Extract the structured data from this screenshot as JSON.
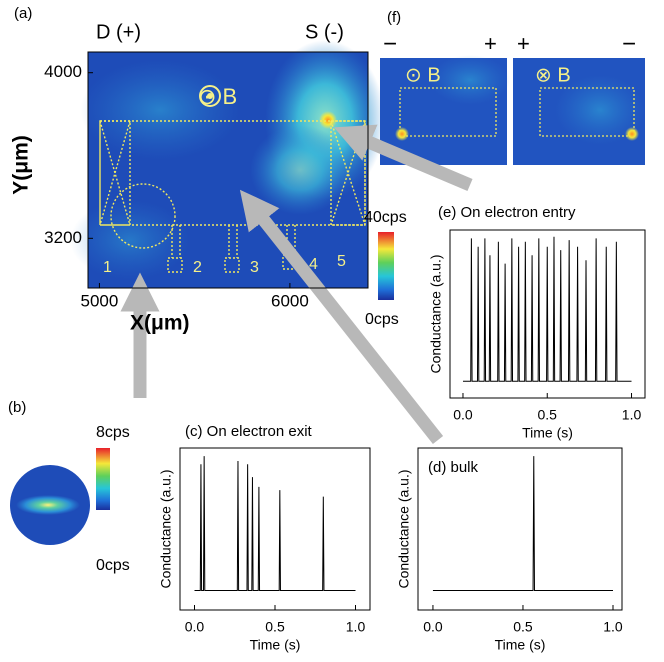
{
  "chart_data": [
    {
      "type": "heatmap",
      "panel_label": "(a)",
      "annotations": [
        "D (+)",
        "S (-)",
        "⊙ B",
        "1",
        "2",
        "3",
        "4",
        "5"
      ],
      "xlabel": "X(μm)",
      "ylabel": "Y(μm)",
      "xlim": [
        4940,
        6410
      ],
      "ylim": [
        2960,
        4100
      ],
      "xticks": [
        5000,
        6000
      ],
      "yticks": [
        3200,
        4000
      ],
      "colorbar_labels": [
        "40cps",
        "0cps"
      ]
    },
    {
      "type": "heatmap",
      "panel_label": "(b)",
      "colorbar_labels": [
        "8cps",
        "0cps"
      ]
    },
    {
      "type": "line",
      "title": "(c) On electron exit",
      "xlabel": "Time (s)",
      "ylabel": "Conductance (a.u.)",
      "color": "#000000",
      "xlim": [
        -0.09,
        1.09
      ],
      "ylim": [
        0,
        1
      ],
      "xticks": [
        {
          "value": 0,
          "label": "0.0"
        },
        0.5,
        {
          "value": 1,
          "label": "1.0"
        }
      ],
      "x": [
        0,
        0.036,
        0.04,
        0.044,
        0.056,
        0.06,
        0.064,
        0.266,
        0.27,
        0.274,
        0.326,
        0.33,
        0.334,
        0.356,
        0.36,
        0.364,
        0.396,
        0.4,
        0.404,
        0.526,
        0.53,
        0.534,
        0.796,
        0.8,
        0.804,
        1
      ],
      "values": [
        0.12,
        0.12,
        0.9,
        0.12,
        0.12,
        0.95,
        0.12,
        0.12,
        0.92,
        0.12,
        0.12,
        0.9,
        0.12,
        0.12,
        0.82,
        0.12,
        0.12,
        0.76,
        0.12,
        0.12,
        0.74,
        0.12,
        0.12,
        0.7,
        0.12,
        0.12
      ]
    },
    {
      "type": "line",
      "title": "(d) bulk",
      "xlabel": "Time (s)",
      "ylabel": "Conductance (a.u.)",
      "color": "#000000",
      "xlim": [
        -0.083,
        1.05
      ],
      "ylim": [
        0,
        1
      ],
      "xticks": [
        {
          "value": 0,
          "label": "0.0"
        },
        0.5,
        {
          "value": 1,
          "label": "1.0"
        }
      ],
      "x": [
        0,
        0.556,
        0.56,
        0.564,
        1
      ],
      "values": [
        0.12,
        0.12,
        0.95,
        0.12,
        0.12
      ]
    },
    {
      "type": "line",
      "title": "(e) On electron entry",
      "xlabel": "Time (s)",
      "ylabel": "Conductance (a.u.)",
      "color": "#000000",
      "xlim": [
        -0.077,
        1.08
      ],
      "ylim": [
        0,
        1
      ],
      "xticks": [
        {
          "value": 0,
          "label": "0.0"
        },
        0.5,
        {
          "value": 1,
          "label": "1.0"
        }
      ],
      "x": [
        0,
        0.046,
        0.05,
        0.054,
        0.086,
        0.09,
        0.094,
        0.126,
        0.13,
        0.134,
        0.156,
        0.16,
        0.164,
        0.206,
        0.21,
        0.214,
        0.246,
        0.25,
        0.254,
        0.286,
        0.29,
        0.294,
        0.326,
        0.33,
        0.334,
        0.366,
        0.37,
        0.374,
        0.406,
        0.41,
        0.414,
        0.446,
        0.45,
        0.454,
        0.496,
        0.5,
        0.504,
        0.536,
        0.54,
        0.544,
        0.576,
        0.58,
        0.584,
        0.626,
        0.63,
        0.634,
        0.676,
        0.68,
        0.684,
        0.726,
        0.73,
        0.734,
        0.786,
        0.79,
        0.794,
        0.846,
        0.85,
        0.854,
        0.906,
        0.91,
        0.914,
        1
      ],
      "values": [
        0.1,
        0.1,
        0.95,
        0.1,
        0.1,
        0.9,
        0.1,
        0.1,
        0.95,
        0.1,
        0.1,
        0.85,
        0.1,
        0.1,
        0.93,
        0.1,
        0.1,
        0.8,
        0.1,
        0.1,
        0.95,
        0.1,
        0.1,
        0.9,
        0.1,
        0.1,
        0.93,
        0.1,
        0.1,
        0.85,
        0.1,
        0.1,
        0.95,
        0.1,
        0.1,
        0.9,
        0.1,
        0.1,
        0.96,
        0.1,
        0.1,
        0.88,
        0.1,
        0.1,
        0.94,
        0.1,
        0.1,
        0.9,
        0.1,
        0.1,
        0.82,
        0.1,
        0.1,
        0.95,
        0.1,
        0.1,
        0.9,
        0.1,
        0.1,
        0.93,
        0.1,
        0.1
      ]
    },
    {
      "type": "heatmap",
      "panel_label": "(f)",
      "annotations": [
        "−",
        "+",
        "⊙ B",
        "+",
        "−",
        "⊗ B"
      ]
    }
  ]
}
